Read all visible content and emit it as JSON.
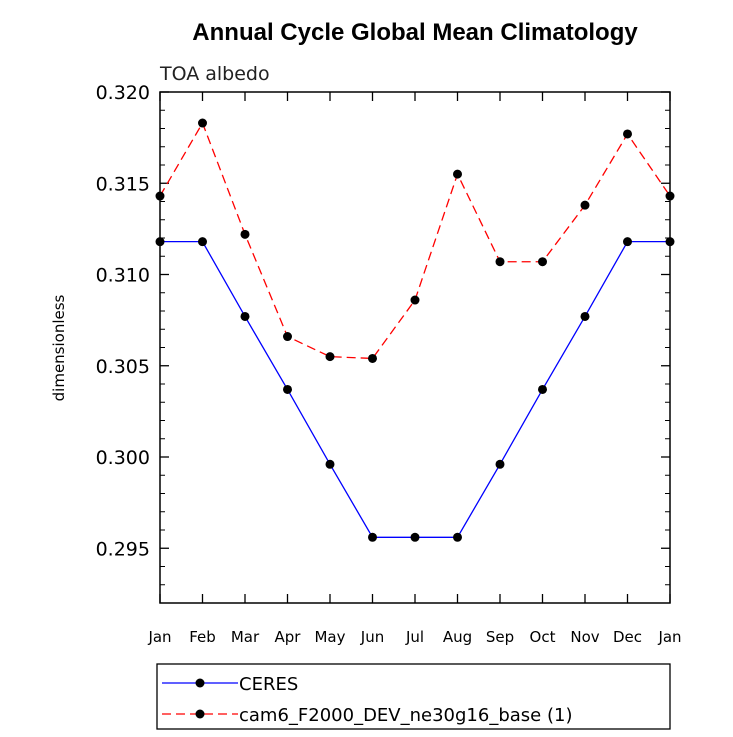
{
  "chart_data": {
    "type": "line",
    "title": "Annual Cycle Global Mean Climatology",
    "subtitle": "TOA albedo",
    "xlabel": "",
    "ylabel": "dimensionless",
    "categories": [
      "Jan",
      "Feb",
      "Mar",
      "Apr",
      "May",
      "Jun",
      "Jul",
      "Aug",
      "Sep",
      "Oct",
      "Nov",
      "Dec",
      "Jan"
    ],
    "ylim": [
      0.292,
      0.32
    ],
    "yticks": [
      0.295,
      0.3,
      0.305,
      0.31,
      0.315,
      0.32
    ],
    "ytick_labels": [
      "0.295",
      "0.300",
      "0.305",
      "0.310",
      "0.315",
      "0.320"
    ],
    "grid": false,
    "legend_position": "bottom",
    "series": [
      {
        "name": "CERES",
        "color": "#0000ff",
        "dashed": false,
        "values": [
          0.3118,
          0.3118,
          0.3077,
          0.3037,
          0.2996,
          0.2956,
          0.2956,
          0.2956,
          0.2996,
          0.3037,
          0.3077,
          0.3118,
          0.3118
        ]
      },
      {
        "name": "cam6_F2000_DEV_ne30g16_base (1)",
        "color": "#ff0000",
        "dashed": true,
        "values": [
          0.3143,
          0.3183,
          0.3122,
          0.3066,
          0.3055,
          0.3054,
          0.3086,
          0.3155,
          0.3107,
          0.3107,
          0.3138,
          0.3177,
          0.3143
        ]
      }
    ]
  }
}
